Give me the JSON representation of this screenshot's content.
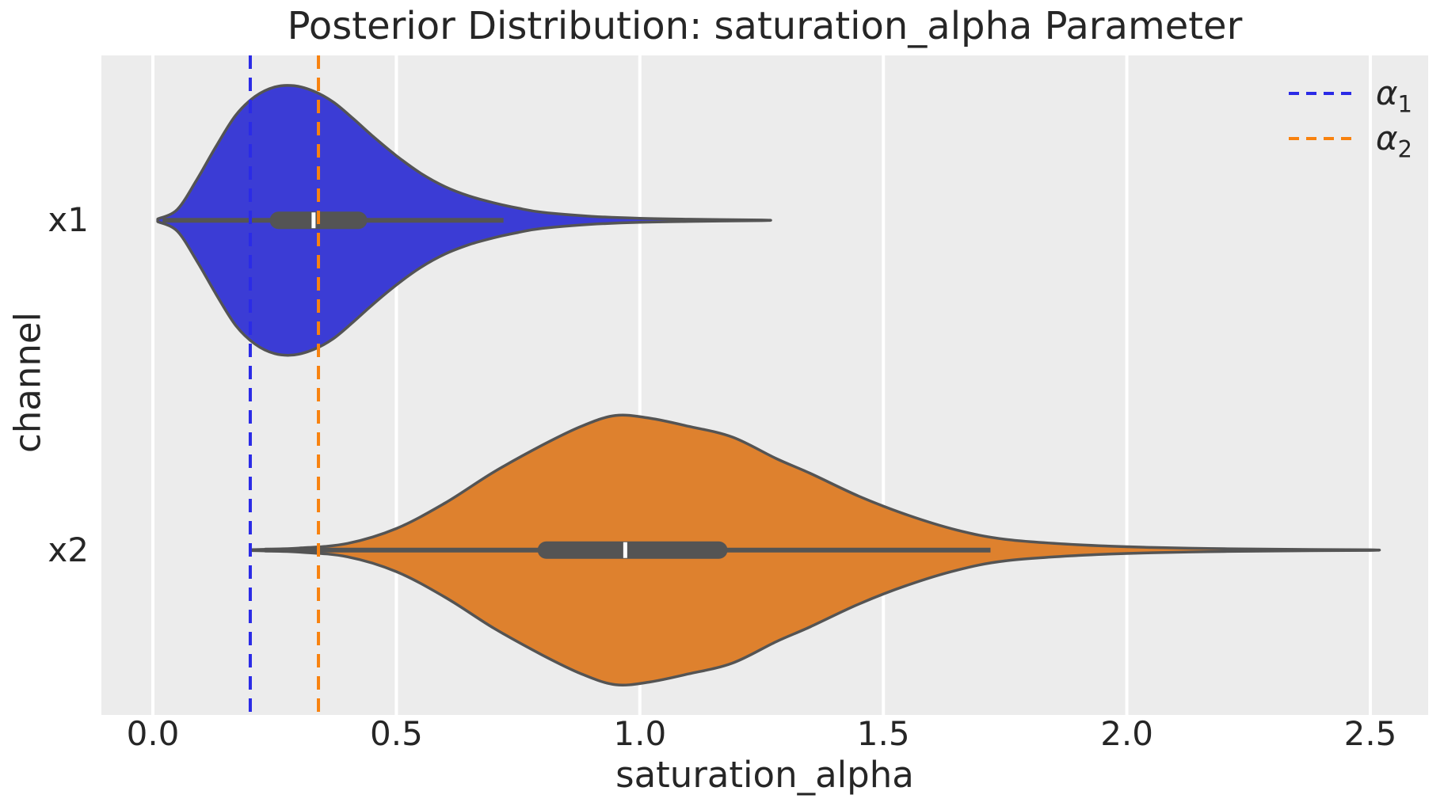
{
  "chart_data": {
    "type": "violin",
    "orientation": "horizontal",
    "title": "Posterior Distribution: saturation_alpha Parameter",
    "xlabel": "saturation_alpha",
    "ylabel": "channel",
    "categories": [
      "x1",
      "x2"
    ],
    "x_ticks": [
      "0.0",
      "0.5",
      "1.0",
      "1.5",
      "2.0",
      "2.5"
    ],
    "x_tick_values": [
      0.0,
      0.5,
      1.0,
      1.5,
      2.0,
      2.5
    ],
    "xlim": [
      -0.106,
      2.619
    ],
    "grid": "vertical white gridlines on gray panel",
    "legend_position": "upper right, no frame",
    "legend": [
      {
        "label_main": "α",
        "label_sub": "1",
        "color": "#2B2BE6",
        "style": "dashed"
      },
      {
        "label_main": "α",
        "label_sub": "2",
        "color": "#F8820F",
        "style": "dashed"
      }
    ],
    "ref_lines": [
      {
        "name": "alpha_1",
        "value": 0.2,
        "color": "#2B2BE6"
      },
      {
        "name": "alpha_2",
        "value": 0.34,
        "color": "#F8820F"
      }
    ],
    "series": [
      {
        "name": "x1",
        "fill": "#3B3CD5",
        "median": 0.33,
        "q1": 0.24,
        "q3": 0.44,
        "whisker_low": 0.02,
        "whisker_high": 0.72,
        "kde": {
          "x": [
            0.01,
            0.05,
            0.09,
            0.13,
            0.17,
            0.21,
            0.25,
            0.29,
            0.33,
            0.37,
            0.41,
            0.45,
            0.5,
            0.55,
            0.6,
            0.65,
            0.7,
            0.75,
            0.8,
            0.9,
            1.0,
            1.1,
            1.25
          ],
          "density": [
            0.01,
            0.08,
            0.3,
            0.55,
            0.78,
            0.92,
            0.99,
            1.0,
            0.96,
            0.88,
            0.76,
            0.63,
            0.48,
            0.35,
            0.25,
            0.18,
            0.13,
            0.09,
            0.06,
            0.03,
            0.015,
            0.008,
            0.002
          ]
        }
      },
      {
        "name": "x2",
        "fill": "#DE812E",
        "median": 0.97,
        "q1": 0.79,
        "q3": 1.18,
        "whisker_low": 0.23,
        "whisker_high": 1.72,
        "kde": {
          "x": [
            0.2,
            0.3,
            0.4,
            0.5,
            0.6,
            0.7,
            0.8,
            0.88,
            0.95,
            1.02,
            1.1,
            1.19,
            1.28,
            1.35,
            1.45,
            1.55,
            1.65,
            1.75,
            1.9,
            2.05,
            2.2,
            2.35,
            2.5
          ],
          "density": [
            0.003,
            0.015,
            0.05,
            0.16,
            0.35,
            0.58,
            0.78,
            0.92,
            1.0,
            0.98,
            0.92,
            0.84,
            0.68,
            0.57,
            0.4,
            0.26,
            0.15,
            0.08,
            0.04,
            0.02,
            0.01,
            0.005,
            0.002
          ]
        }
      }
    ],
    "style": {
      "panel_bg": "#ECECEC",
      "grid_color": "#FFFFFF",
      "edge_color": "#545454",
      "box_color": "#545454",
      "median_color": "#FFFFFF",
      "text_color": "#262626",
      "figure_bg": "#FFFFFF"
    }
  }
}
